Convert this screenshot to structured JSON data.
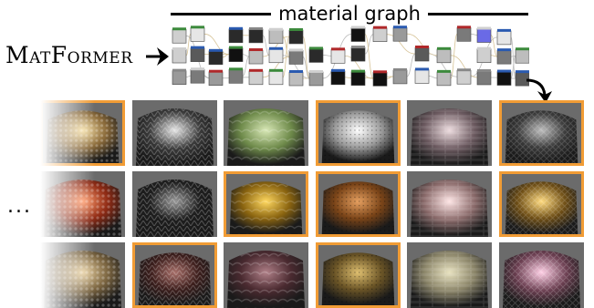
{
  "header": {
    "graph_label": "material graph",
    "model_name_initial_1": "M",
    "model_name_rest_1": "AT",
    "model_name_initial_2": "F",
    "model_name_rest_2": "ORMER"
  },
  "ellipsis": "...",
  "colors": {
    "selection_border": "#f19c35",
    "tile_background": "#6b6b6b"
  },
  "materials": [
    {
      "row": 0,
      "col": 0,
      "name": "gold-metal-weave",
      "base": "#8a6a3a",
      "hi": "#f6e0a6",
      "selected": true
    },
    {
      "row": 0,
      "col": 1,
      "name": "silver-scales",
      "base": "#3a3a3a",
      "hi": "#e6e6e6",
      "selected": false
    },
    {
      "row": 0,
      "col": 2,
      "name": "green-marble",
      "base": "#6e8a4a",
      "hi": "#d8e8b6",
      "selected": false
    },
    {
      "row": 0,
      "col": 3,
      "name": "white-perforated",
      "base": "#9a9a9a",
      "hi": "#ffffff",
      "selected": true
    },
    {
      "row": 0,
      "col": 4,
      "name": "mauve-planks",
      "base": "#6c5a60",
      "hi": "#eedde0",
      "selected": false
    },
    {
      "row": 0,
      "col": 5,
      "name": "black-white-terrazzo",
      "base": "#3a3a3a",
      "hi": "#bdbdbd",
      "selected": true
    },
    {
      "row": 1,
      "col": 0,
      "name": "red-bricks",
      "base": "#8e2a14",
      "hi": "#ff9a6a",
      "selected": false
    },
    {
      "row": 1,
      "col": 1,
      "name": "dark-stone-tiles",
      "base": "#1e1e1e",
      "hi": "#9a9a9a",
      "selected": false
    },
    {
      "row": 1,
      "col": 2,
      "name": "gold-quilted",
      "base": "#8a6410",
      "hi": "#ffd860",
      "selected": true
    },
    {
      "row": 1,
      "col": 3,
      "name": "woven-straw",
      "base": "#7a4418",
      "hi": "#e6a060",
      "selected": true
    },
    {
      "row": 1,
      "col": 4,
      "name": "floral-fabric",
      "base": "#8a6a6a",
      "hi": "#ffe6e6",
      "selected": false
    },
    {
      "row": 1,
      "col": 5,
      "name": "gold-foil",
      "base": "#6e4e16",
      "hi": "#ffdb80",
      "selected": true
    },
    {
      "row": 2,
      "col": 0,
      "name": "tan-stucco",
      "base": "#7a6440",
      "hi": "#e8d0a0",
      "selected": false
    },
    {
      "row": 2,
      "col": 1,
      "name": "maroon-leather",
      "base": "#3c1e1c",
      "hi": "#a8706a",
      "selected": true
    },
    {
      "row": 2,
      "col": 2,
      "name": "plum-herringbone",
      "base": "#4a2a30",
      "hi": "#b08088",
      "selected": false
    },
    {
      "row": 2,
      "col": 3,
      "name": "wicker-stripes",
      "base": "#6a5426",
      "hi": "#e0c070",
      "selected": true
    },
    {
      "row": 2,
      "col": 4,
      "name": "canvas-grid",
      "base": "#8a8468",
      "hi": "#e8e2c0",
      "selected": false
    },
    {
      "row": 2,
      "col": 5,
      "name": "ribbed-pink-plastic",
      "base": "#6a3e50",
      "hi": "#ffd0e6",
      "selected": false
    }
  ]
}
